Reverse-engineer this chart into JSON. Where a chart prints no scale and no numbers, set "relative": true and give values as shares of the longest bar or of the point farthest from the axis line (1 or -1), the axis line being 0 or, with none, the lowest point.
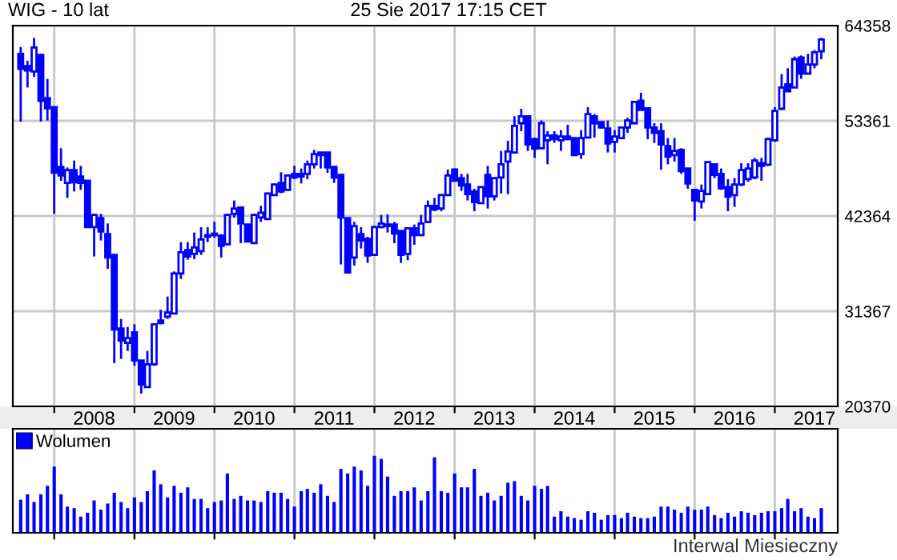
{
  "chart_data": [
    {
      "type": "candlestick",
      "title": "WIG - 10 lat",
      "subtitle": "25 Sie 2017 17:15 CET",
      "color": "#0000ff",
      "x": [
        "2007-08-01",
        "2007-09-01",
        "2007-10-01",
        "2007-11-01",
        "2007-12-01",
        "2008-01-01",
        "2008-02-01",
        "2008-03-01",
        "2008-04-01",
        "2008-05-01",
        "2008-06-01",
        "2008-07-01",
        "2008-08-01",
        "2008-09-01",
        "2008-10-01",
        "2008-11-01",
        "2008-12-01",
        "2009-01-01",
        "2009-02-01",
        "2009-03-01",
        "2009-04-01",
        "2009-05-01",
        "2009-06-01",
        "2009-07-01",
        "2009-08-01",
        "2009-09-01",
        "2009-10-01",
        "2009-11-01",
        "2009-12-01",
        "2010-01-01",
        "2010-02-01",
        "2010-03-01",
        "2010-04-01",
        "2010-05-01",
        "2010-06-01",
        "2010-07-01",
        "2010-08-01",
        "2010-09-01",
        "2010-10-01",
        "2010-11-01",
        "2010-12-01",
        "2011-01-01",
        "2011-02-01",
        "2011-03-01",
        "2011-04-01",
        "2011-05-01",
        "2011-06-01",
        "2011-07-01",
        "2011-08-01",
        "2011-09-01",
        "2011-10-01",
        "2011-11-01",
        "2011-12-01",
        "2012-01-01",
        "2012-02-01",
        "2012-03-01",
        "2012-04-01",
        "2012-05-01",
        "2012-06-01",
        "2012-07-01",
        "2012-08-01",
        "2012-09-01",
        "2012-10-01",
        "2012-11-01",
        "2012-12-01",
        "2013-01-01",
        "2013-02-01",
        "2013-03-01",
        "2013-04-01",
        "2013-05-01",
        "2013-06-01",
        "2013-07-01",
        "2013-08-01",
        "2013-09-01",
        "2013-10-01",
        "2013-11-01",
        "2013-12-01",
        "2014-01-01",
        "2014-02-01",
        "2014-03-01",
        "2014-04-01",
        "2014-05-01",
        "2014-06-01",
        "2014-07-01",
        "2014-08-01",
        "2014-09-01",
        "2014-10-01",
        "2014-11-01",
        "2014-12-01",
        "2015-01-01",
        "2015-02-01",
        "2015-03-01",
        "2015-04-01",
        "2015-05-01",
        "2015-06-01",
        "2015-07-01",
        "2015-08-01",
        "2015-09-01",
        "2015-10-01",
        "2015-11-01",
        "2015-12-01",
        "2016-01-01",
        "2016-02-01",
        "2016-03-01",
        "2016-04-01",
        "2016-05-01",
        "2016-06-01",
        "2016-07-01",
        "2016-08-01",
        "2016-09-01",
        "2016-10-01",
        "2016-11-01",
        "2016-12-01",
        "2017-01-01",
        "2017-02-01",
        "2017-03-01",
        "2017-04-01",
        "2017-05-01",
        "2017-06-01",
        "2017-07-01",
        "2017-08-01"
      ],
      "ohlc": [
        [
          61093,
          61894,
          53270,
          59368
        ],
        [
          59676,
          60292,
          57212,
          59183
        ],
        [
          59060,
          62941,
          58444,
          61832
        ],
        [
          60970,
          61093,
          53270,
          55672
        ],
        [
          55980,
          58198,
          53393,
          54810
        ],
        [
          54933,
          54933,
          42613,
          47356
        ],
        [
          48034,
          50190,
          46433,
          47048
        ],
        [
          46186,
          47972,
          44461,
          47664
        ],
        [
          47664,
          48773,
          45200,
          46248
        ],
        [
          46925,
          48157,
          45385,
          46186
        ],
        [
          46433,
          46433,
          41073,
          41073
        ],
        [
          41073,
          42490,
          37685,
          42490
        ],
        [
          42120,
          42613,
          39533,
          40580
        ],
        [
          40272,
          41504,
          36268,
          37562
        ],
        [
          37870,
          37870,
          25365,
          29246
        ],
        [
          29369,
          30478,
          25858,
          27952
        ],
        [
          27706,
          29554,
          26782,
          28260
        ],
        [
          28938,
          29862,
          25057,
          25673
        ],
        [
          25673,
          25673,
          21854,
          22901
        ],
        [
          22593,
          26782,
          22593,
          25242
        ],
        [
          25242,
          29862,
          25057,
          29862
        ],
        [
          30293,
          31525,
          29862,
          29985
        ],
        [
          30724,
          33065,
          30478,
          31217
        ],
        [
          31094,
          35961,
          31094,
          35715
        ],
        [
          35715,
          39348,
          35097,
          38177
        ],
        [
          38424,
          39348,
          37315,
          37685
        ],
        [
          37993,
          40457,
          37377,
          38732
        ],
        [
          38301,
          41073,
          37870,
          39656
        ],
        [
          39965,
          41073,
          39348,
          40149
        ],
        [
          40149,
          41685,
          39841,
          40334
        ],
        [
          40088,
          40272,
          37562,
          38917
        ],
        [
          39102,
          42613,
          39102,
          42490
        ],
        [
          42613,
          44153,
          42181,
          43229
        ],
        [
          43352,
          43352,
          39225,
          41504
        ],
        [
          41381,
          41381,
          39410,
          39410
        ],
        [
          39225,
          42613,
          39225,
          42490
        ],
        [
          42182,
          43537,
          41689,
          42736
        ],
        [
          41997,
          45077,
          41997,
          44953
        ],
        [
          44769,
          46125,
          44769,
          46001
        ],
        [
          46186,
          47417,
          45015,
          45200
        ],
        [
          45385,
          47048,
          45385,
          47048
        ],
        [
          47233,
          48157,
          46618,
          46802
        ],
        [
          47233,
          47849,
          46125,
          46925
        ],
        [
          47233,
          48773,
          46618,
          48342
        ],
        [
          48342,
          50005,
          47849,
          49512
        ],
        [
          49697,
          49697,
          47849,
          49389
        ],
        [
          49697,
          49697,
          47356,
          47972
        ],
        [
          48034,
          48157,
          46186,
          46802
        ],
        [
          47110,
          47233,
          36761,
          42181
        ],
        [
          42120,
          42120,
          35838,
          35838
        ],
        [
          37562,
          41689,
          36638,
          41196
        ],
        [
          40272,
          41073,
          38609,
          39533
        ],
        [
          39718,
          39964,
          36946,
          37808
        ],
        [
          37870,
          41258,
          37870,
          41073
        ],
        [
          41073,
          42490,
          40950,
          41504
        ],
        [
          41196,
          42551,
          40457,
          41381
        ],
        [
          41381,
          41689,
          39225,
          40334
        ],
        [
          40642,
          40642,
          36946,
          37870
        ],
        [
          37993,
          41073,
          37254,
          40950
        ],
        [
          40950,
          41381,
          39040,
          40149
        ],
        [
          40149,
          42490,
          40026,
          41504
        ],
        [
          41689,
          44153,
          41566,
          43537
        ],
        [
          43537,
          44461,
          42920,
          43106
        ],
        [
          43229,
          44892,
          42920,
          44769
        ],
        [
          44769,
          47726,
          44769,
          47048
        ],
        [
          47726,
          47849,
          46433,
          46433
        ],
        [
          46741,
          47233,
          45262,
          45878
        ],
        [
          45999,
          47233,
          44153,
          44892
        ],
        [
          45200,
          45508,
          42920,
          43968
        ],
        [
          43845,
          45693,
          43845,
          45693
        ],
        [
          47110,
          48157,
          43229,
          44645
        ],
        [
          44645,
          46741,
          44153,
          46741
        ],
        [
          46802,
          49882,
          44954,
          48342
        ],
        [
          48650,
          51052,
          44892,
          49820
        ],
        [
          49697,
          53886,
          49697,
          52777
        ],
        [
          53085,
          54748,
          52161,
          53886
        ],
        [
          53886,
          54009,
          49882,
          50621
        ],
        [
          51237,
          51422,
          49081,
          50128
        ],
        [
          50190,
          53393,
          50190,
          53085
        ],
        [
          51114,
          52161,
          48342,
          51668
        ],
        [
          51668,
          52161,
          50806,
          51237
        ],
        [
          51114,
          52284,
          49882,
          51545
        ],
        [
          51545,
          52900,
          51114,
          51237
        ],
        [
          51360,
          51360,
          49389,
          49389
        ],
        [
          49512,
          52284,
          48958,
          51360
        ],
        [
          51422,
          54933,
          51422,
          54132
        ],
        [
          53886,
          54132,
          51422,
          53085
        ],
        [
          53208,
          53208,
          52469,
          52592
        ],
        [
          52469,
          53393,
          49697,
          50744
        ],
        [
          50929,
          52284,
          49697,
          51545
        ],
        [
          51360,
          52592,
          51237,
          52592
        ],
        [
          52592,
          53701,
          51976,
          53393
        ],
        [
          53085,
          55549,
          53085,
          55549
        ],
        [
          55672,
          56596,
          54625,
          54625
        ],
        [
          54809,
          54809,
          51237,
          52592
        ],
        [
          52592,
          53085,
          50806,
          51976
        ],
        [
          52161,
          53085,
          47726,
          50621
        ],
        [
          50436,
          51360,
          48342,
          49204
        ],
        [
          49389,
          51360,
          48650,
          49882
        ],
        [
          50005,
          50190,
          47233,
          47541
        ],
        [
          47849,
          47849,
          45508,
          46125
        ],
        [
          45385,
          45385,
          41812,
          44153
        ],
        [
          44030,
          45999,
          43229,
          45262
        ],
        [
          44892,
          48588,
          44892,
          48588
        ],
        [
          48342,
          48342,
          46741,
          47110
        ],
        [
          47233,
          47849,
          45385,
          45570
        ],
        [
          45693,
          46618,
          42920,
          44584
        ],
        [
          44769,
          46741,
          43414,
          46001
        ],
        [
          46001,
          48465,
          45816,
          47664
        ],
        [
          46618,
          48465,
          46310,
          47849
        ],
        [
          46802,
          49081,
          46618,
          48773
        ],
        [
          48465,
          49081,
          46433,
          48157
        ],
        [
          48280,
          51422,
          48157,
          51237
        ],
        [
          51114,
          54933,
          50929,
          54502
        ],
        [
          54748,
          58752,
          54625,
          57212
        ],
        [
          57582,
          59430,
          56781,
          56781
        ],
        [
          57212,
          60785,
          57212,
          60477
        ],
        [
          60662,
          60908,
          58198,
          58814
        ],
        [
          58814,
          61093,
          58814,
          59861
        ],
        [
          59861,
          61524,
          59430,
          61278
        ],
        [
          61401,
          62941,
          60477,
          62756
        ]
      ],
      "xlim": [
        "2007-06-26",
        "2017-10-15"
      ],
      "xticks": [
        {
          "value": "2008-01-01",
          "label": null
        },
        {
          "value": "2009-01-01",
          "label": null
        },
        {
          "value": "2010-01-01",
          "label": null
        },
        {
          "value": "2011-01-01",
          "label": null
        },
        {
          "value": "2012-01-01",
          "label": null
        },
        {
          "value": "2013-01-01",
          "label": null
        },
        {
          "value": "2014-01-01",
          "label": null
        },
        {
          "value": "2015-01-01",
          "label": null
        },
        {
          "value": "2016-01-01",
          "label": null
        },
        {
          "value": "2017-01-01",
          "label": null
        },
        {
          "value": "2008-07-01",
          "label": "2008"
        },
        {
          "value": "2009-07-01",
          "label": "2009"
        },
        {
          "value": "2010-07-01",
          "label": "2010"
        },
        {
          "value": "2011-07-01",
          "label": "2011"
        },
        {
          "value": "2012-07-01",
          "label": "2012"
        },
        {
          "value": "2013-07-01",
          "label": "2013"
        },
        {
          "value": "2014-07-01",
          "label": "2014"
        },
        {
          "value": "2015-07-01",
          "label": "2015"
        },
        {
          "value": "2016-07-01",
          "label": "2016"
        },
        {
          "value": "2017-07-01",
          "label": "2017"
        }
      ],
      "ylim": [
        20370,
        64358
      ],
      "yticks": [
        20370,
        31367,
        42364,
        53361,
        64358
      ],
      "grid": true
    },
    {
      "type": "bar",
      "relative": true,
      "legend": "top left",
      "grid": "x",
      "tick_labels": false,
      "annotations": [
        "Interwal Miesieczny"
      ],
      "x": [
        "2007-08-01",
        "2007-09-01",
        "2007-10-01",
        "2007-11-01",
        "2007-12-01",
        "2008-01-01",
        "2008-02-01",
        "2008-03-01",
        "2008-04-01",
        "2008-05-01",
        "2008-06-01",
        "2008-07-01",
        "2008-08-01",
        "2008-09-01",
        "2008-10-01",
        "2008-11-01",
        "2008-12-01",
        "2009-01-01",
        "2009-02-01",
        "2009-03-01",
        "2009-04-01",
        "2009-05-01",
        "2009-06-01",
        "2009-07-01",
        "2009-08-01",
        "2009-09-01",
        "2009-10-01",
        "2009-11-01",
        "2009-12-01",
        "2010-01-01",
        "2010-02-01",
        "2010-03-01",
        "2010-04-01",
        "2010-05-01",
        "2010-06-01",
        "2010-07-01",
        "2010-08-01",
        "2010-09-01",
        "2010-10-01",
        "2010-11-01",
        "2010-12-01",
        "2011-01-01",
        "2011-02-01",
        "2011-03-01",
        "2011-04-01",
        "2011-05-01",
        "2011-06-01",
        "2011-07-01",
        "2011-08-01",
        "2011-09-01",
        "2011-10-01",
        "2011-11-01",
        "2011-12-01",
        "2012-01-01",
        "2012-02-01",
        "2012-03-01",
        "2012-04-01",
        "2012-05-01",
        "2012-06-01",
        "2012-07-01",
        "2012-08-01",
        "2012-09-01",
        "2012-10-01",
        "2012-11-01",
        "2012-12-01",
        "2013-01-01",
        "2013-02-01",
        "2013-03-01",
        "2013-04-01",
        "2013-05-01",
        "2013-06-01",
        "2013-07-01",
        "2013-08-01",
        "2013-09-01",
        "2013-10-01",
        "2013-11-01",
        "2013-12-01",
        "2014-01-01",
        "2014-02-01",
        "2014-03-01",
        "2014-04-01",
        "2014-05-01",
        "2014-06-01",
        "2014-07-01",
        "2014-08-01",
        "2014-09-01",
        "2014-10-01",
        "2014-11-01",
        "2014-12-01",
        "2015-01-01",
        "2015-02-01",
        "2015-03-01",
        "2015-04-01",
        "2015-05-01",
        "2015-06-01",
        "2015-07-01",
        "2015-08-01",
        "2015-09-01",
        "2015-10-01",
        "2015-11-01",
        "2015-12-01",
        "2016-01-01",
        "2016-02-01",
        "2016-03-01",
        "2016-04-01",
        "2016-05-01",
        "2016-06-01",
        "2016-07-01",
        "2016-08-01",
        "2016-09-01",
        "2016-10-01",
        "2016-11-01",
        "2016-12-01",
        "2017-01-01",
        "2017-02-01",
        "2017-03-01",
        "2017-04-01",
        "2017-05-01",
        "2017-06-01",
        "2017-07-01",
        "2017-08-01"
      ],
      "xlim": [
        "2007-06-26",
        "2017-10-15"
      ],
      "xticks": [
        {
          "value": "2008-01-01",
          "label": null
        },
        {
          "value": "2009-01-01",
          "label": null
        },
        {
          "value": "2010-01-01",
          "label": null
        },
        {
          "value": "2011-01-01",
          "label": null
        },
        {
          "value": "2012-01-01",
          "label": null
        },
        {
          "value": "2013-01-01",
          "label": null
        },
        {
          "value": "2014-01-01",
          "label": null
        },
        {
          "value": "2015-01-01",
          "label": null
        },
        {
          "value": "2016-01-01",
          "label": null
        },
        {
          "value": "2017-01-01",
          "label": null
        }
      ],
      "series": [
        {
          "name": "Wolumen",
          "color": "#0000ff",
          "values": [
            0.43,
            0.5,
            0.4,
            0.5,
            0.61,
            0.86,
            0.5,
            0.34,
            0.32,
            0.21,
            0.26,
            0.42,
            0.3,
            0.38,
            0.52,
            0.4,
            0.32,
            0.46,
            0.4,
            0.54,
            0.81,
            0.63,
            0.46,
            0.61,
            0.52,
            0.59,
            0.44,
            0.44,
            0.32,
            0.4,
            0.42,
            0.77,
            0.44,
            0.48,
            0.42,
            0.42,
            0.4,
            0.54,
            0.52,
            0.52,
            0.44,
            0.34,
            0.54,
            0.57,
            0.52,
            0.63,
            0.48,
            0.4,
            0.83,
            0.77,
            0.86,
            0.81,
            0.61,
            1,
            0.96,
            0.73,
            0.48,
            0.54,
            0.54,
            0.59,
            0.42,
            0.54,
            0.98,
            0.54,
            0.52,
            0.77,
            0.59,
            0.59,
            0.83,
            0.48,
            0.52,
            0.42,
            0.48,
            0.65,
            0.67,
            0.48,
            0.42,
            0.61,
            0.57,
            0.61,
            0.21,
            0.28,
            0.21,
            0.19,
            0.17,
            0.28,
            0.26,
            0.17,
            0.23,
            0.23,
            0.19,
            0.26,
            0.21,
            0.19,
            0.19,
            0.21,
            0.34,
            0.34,
            0.3,
            0.26,
            0.34,
            0.3,
            0.3,
            0.34,
            0.23,
            0.19,
            0.26,
            0.21,
            0.28,
            0.26,
            0.23,
            0.26,
            0.28,
            0.28,
            0.32,
            0.44,
            0.28,
            0.32,
            0.21,
            0.19,
            0.32
          ]
        }
      ]
    }
  ]
}
